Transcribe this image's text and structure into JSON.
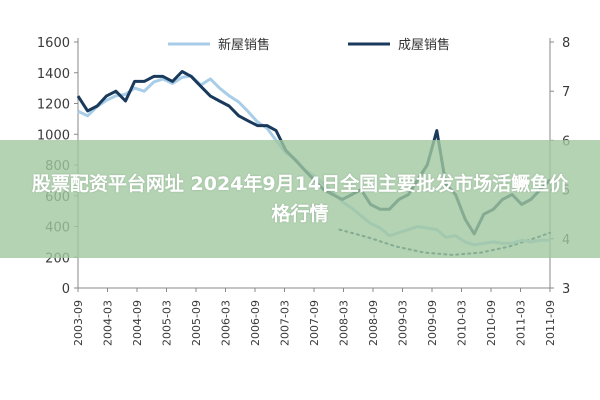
{
  "overlay": {
    "title": "股票配资平台网址 2024年9月14日全国主要批发市场活鳜鱼价格行情"
  },
  "chart_data": {
    "type": "line",
    "legend_position": "top",
    "grid": false,
    "x_labels": [
      "2003-09",
      "2004-03",
      "2004-09",
      "2005-03",
      "2005-09",
      "2006-03",
      "2006-09",
      "2007-03",
      "2007-09",
      "2008-03",
      "2008-09",
      "2009-03",
      "2009-09",
      "2010-03",
      "2010-09",
      "2011-03",
      "2011-09"
    ],
    "y_left": {
      "ylim": [
        0,
        1600
      ],
      "ticks": [
        0,
        200,
        400,
        600,
        800,
        1000,
        1200,
        1400,
        1600
      ]
    },
    "y_right": {
      "ylim": [
        3,
        8
      ],
      "ticks": [
        3,
        4,
        5,
        6,
        7,
        8
      ]
    },
    "series": [
      {
        "name": "新屋销售",
        "axis": "left",
        "color": "#a8cde8",
        "x": [
          2003.58,
          2003.75,
          2003.92,
          2004.08,
          2004.25,
          2004.42,
          2004.58,
          2004.75,
          2004.92,
          2005.08,
          2005.25,
          2005.42,
          2005.58,
          2005.75,
          2005.92,
          2006.08,
          2006.25,
          2006.42,
          2006.58,
          2006.75,
          2006.92,
          2007.08,
          2007.25,
          2007.42,
          2007.58,
          2007.75,
          2007.92,
          2008.08,
          2008.25,
          2008.42,
          2008.58,
          2008.75,
          2008.92,
          2009.08,
          2009.25,
          2009.42,
          2009.58,
          2009.75,
          2009.92,
          2010.08,
          2010.25,
          2010.42,
          2010.58,
          2010.75,
          2010.92,
          2011.08,
          2011.25,
          2011.42,
          2011.58,
          2011.75,
          2011.92
        ],
        "values": [
          1150,
          1120,
          1180,
          1220,
          1250,
          1260,
          1300,
          1280,
          1340,
          1360,
          1330,
          1370,
          1380,
          1320,
          1360,
          1300,
          1250,
          1210,
          1150,
          1080,
          1040,
          960,
          880,
          840,
          770,
          730,
          680,
          620,
          560,
          520,
          470,
          420,
          390,
          340,
          360,
          380,
          400,
          390,
          380,
          330,
          340,
          300,
          280,
          290,
          300,
          290,
          290,
          310,
          300,
          310,
          310
        ],
        "draw_yoy": false
      },
      {
        "name": "成屋销售",
        "axis": "right",
        "color": "#1a3a5c",
        "x": [
          2003.58,
          2003.75,
          2003.92,
          2004.08,
          2004.25,
          2004.42,
          2004.58,
          2004.75,
          2004.92,
          2005.08,
          2005.25,
          2005.42,
          2005.58,
          2005.75,
          2005.92,
          2006.08,
          2006.25,
          2006.42,
          2006.58,
          2006.75,
          2006.92,
          2007.08,
          2007.25,
          2007.42,
          2007.58,
          2007.75,
          2007.92,
          2008.08,
          2008.25,
          2008.42,
          2008.58,
          2008.75,
          2008.92,
          2009.08,
          2009.25,
          2009.42,
          2009.58,
          2009.75,
          2009.92,
          2010.08,
          2010.25,
          2010.42,
          2010.58,
          2010.75,
          2010.92,
          2011.08,
          2011.25,
          2011.42,
          2011.58,
          2011.75,
          2011.92
        ],
        "values": [
          6.9,
          6.6,
          6.7,
          6.9,
          7.0,
          6.8,
          7.2,
          7.2,
          7.3,
          7.3,
          7.2,
          7.4,
          7.3,
          7.1,
          6.9,
          6.8,
          6.7,
          6.5,
          6.4,
          6.3,
          6.3,
          6.2,
          5.8,
          5.6,
          5.4,
          5.2,
          5.0,
          4.9,
          4.8,
          4.9,
          5.0,
          4.7,
          4.6,
          4.6,
          4.8,
          4.9,
          5.2,
          5.5,
          6.2,
          5.1,
          4.9,
          4.4,
          4.1,
          4.5,
          4.6,
          4.8,
          4.9,
          4.7,
          4.8,
          5.0,
          5.2
        ]
      }
    ],
    "trend_curve": {
      "color": "#1a3a5c",
      "style": "dotted",
      "axis": "left",
      "x": [
        2008.2,
        2008.7,
        2009.2,
        2009.7,
        2010.2,
        2010.7,
        2011.2,
        2011.7,
        2011.92
      ],
      "values": [
        380,
        330,
        270,
        230,
        215,
        230,
        270,
        330,
        360
      ]
    }
  }
}
